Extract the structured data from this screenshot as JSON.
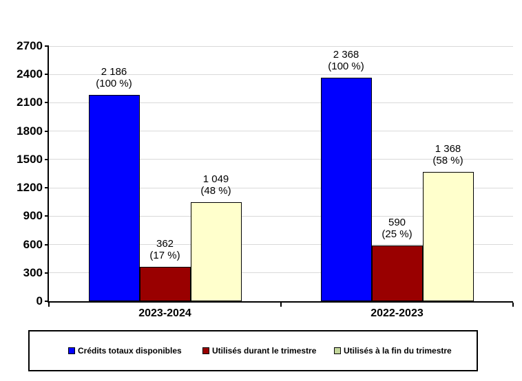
{
  "chart_data": {
    "type": "bar",
    "title": "",
    "xlabel": "",
    "ylabel": "",
    "categories": [
      "2023-2024",
      "2022-2023"
    ],
    "series": [
      {
        "name": "Crédits totaux disponibles",
        "color": "#0000FF",
        "legend_color": "#0000FF",
        "values": [
          2186,
          2368
        ],
        "bar_labels": [
          [
            "2 186",
            "(100 %)"
          ],
          [
            "2 368",
            "(100 %)"
          ]
        ]
      },
      {
        "name": "Utilisés durant le trimestre",
        "color": "#990000",
        "legend_color": "#990000",
        "values": [
          362,
          590
        ],
        "bar_labels": [
          [
            "362",
            "(17 %)"
          ],
          [
            "590",
            "(25 %)"
          ]
        ]
      },
      {
        "name": "Utilisés à la fin du trimestre",
        "color": "#FFFFCC",
        "legend_color": "#C3D69B",
        "values": [
          1049,
          1368
        ],
        "bar_labels": [
          [
            "1 049",
            "(48 %)"
          ],
          [
            "1 368",
            "(58 %)"
          ]
        ]
      }
    ],
    "ylim": [
      0,
      2700
    ],
    "ytick_step": 300,
    "yticks": [
      2700,
      2400,
      2100,
      1800,
      1500,
      1200,
      900,
      600,
      300,
      0
    ],
    "grid": true,
    "legend_position": "bottom",
    "colors": {
      "gridline": "#D9D9D9",
      "axis": "#000000",
      "bar_border": "#000000",
      "background": "#FFFFFF"
    }
  }
}
